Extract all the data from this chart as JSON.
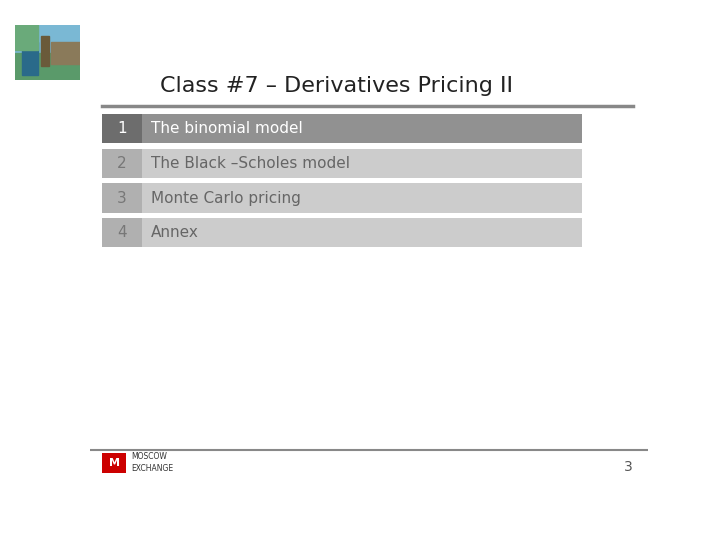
{
  "title": "Class #7 – Derivatives Pricing II",
  "title_fontsize": 16,
  "title_color": "#222222",
  "background_color": "#ffffff",
  "header_line_color": "#888888",
  "rows": [
    {
      "number": "1",
      "text": "The binomial model",
      "num_bg": "#6d6d6d",
      "text_bg": "#919191",
      "active": true
    },
    {
      "number": "2",
      "text": "The Black –Scholes model",
      "num_bg": "#b0b0b0",
      "text_bg": "#cccccc",
      "active": false
    },
    {
      "number": "3",
      "text": "Monte Carlo pricing",
      "num_bg": "#b0b0b0",
      "text_bg": "#cccccc",
      "active": false
    },
    {
      "number": "4",
      "text": "Annex",
      "num_bg": "#b0b0b0",
      "text_bg": "#cccccc",
      "active": false
    }
  ],
  "footer_line_color": "#888888",
  "page_number": "3",
  "moex_box_color": "#cc0000",
  "text_color_active": "#ffffff",
  "text_color_inactive": "#666666",
  "num_text_color_inactive": "#777777"
}
